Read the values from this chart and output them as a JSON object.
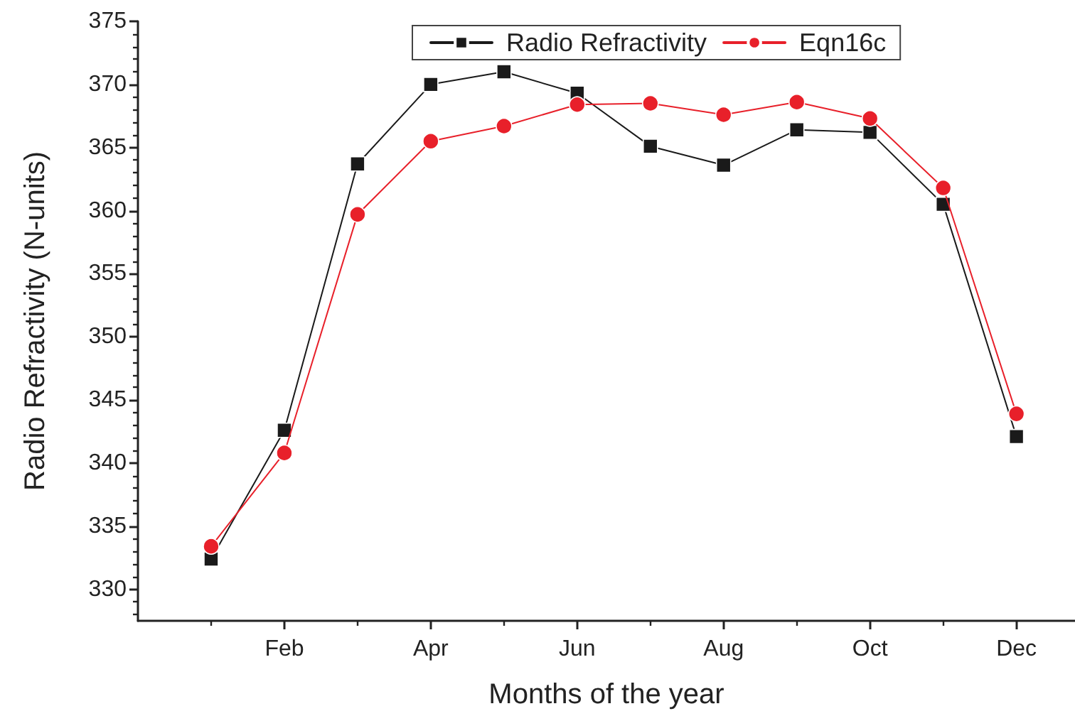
{
  "chart_data": {
    "type": "line",
    "xlabel": "Months of the year",
    "ylabel": "Radio Refractivity (N-units)",
    "categories": [
      null,
      "Feb",
      null,
      "Apr",
      null,
      "Jun",
      null,
      "Aug",
      null,
      "Oct",
      null,
      "Dec"
    ],
    "ylim": [
      327.5,
      375
    ],
    "yticks": [
      {
        "value": 328,
        "label": null
      },
      {
        "value": 329,
        "label": null
      },
      330,
      {
        "value": 331,
        "label": null
      },
      {
        "value": 332,
        "label": null
      },
      {
        "value": 333,
        "label": null
      },
      {
        "value": 334,
        "label": null
      },
      335,
      {
        "value": 336,
        "label": null
      },
      {
        "value": 337,
        "label": null
      },
      {
        "value": 338,
        "label": null
      },
      {
        "value": 339,
        "label": null
      },
      340,
      {
        "value": 341,
        "label": null
      },
      {
        "value": 342,
        "label": null
      },
      {
        "value": 343,
        "label": null
      },
      {
        "value": 344,
        "label": null
      },
      345,
      {
        "value": 346,
        "label": null
      },
      {
        "value": 347,
        "label": null
      },
      {
        "value": 348,
        "label": null
      },
      {
        "value": 349,
        "label": null
      },
      350,
      {
        "value": 351,
        "label": null
      },
      {
        "value": 352,
        "label": null
      },
      {
        "value": 353,
        "label": null
      },
      {
        "value": 354,
        "label": null
      },
      355,
      {
        "value": 356,
        "label": null
      },
      {
        "value": 357,
        "label": null
      },
      {
        "value": 358,
        "label": null
      },
      {
        "value": 359,
        "label": null
      },
      360,
      {
        "value": 361,
        "label": null
      },
      {
        "value": 362,
        "label": null
      },
      {
        "value": 363,
        "label": null
      },
      {
        "value": 364,
        "label": null
      },
      365,
      {
        "value": 366,
        "label": null
      },
      {
        "value": 367,
        "label": null
      },
      {
        "value": 368,
        "label": null
      },
      {
        "value": 369,
        "label": null
      },
      370,
      {
        "value": 371,
        "label": null
      },
      {
        "value": 372,
        "label": null
      },
      {
        "value": 373,
        "label": null
      },
      {
        "value": 374,
        "label": null
      },
      375
    ],
    "series": [
      {
        "name": "Radio Refractivity",
        "color": "#1a1a1a",
        "marker": "square",
        "values": [
          332.4,
          342.6,
          363.7,
          370.0,
          371.0,
          369.3,
          365.1,
          363.6,
          366.4,
          366.2,
          360.5,
          342.1
        ]
      },
      {
        "name": "Eqn16c",
        "color": "#e8202a",
        "marker": "circle",
        "values": [
          333.4,
          340.8,
          359.7,
          365.5,
          366.7,
          368.4,
          368.5,
          367.6,
          368.6,
          367.3,
          361.8,
          343.9
        ]
      }
    ],
    "legend": "top"
  }
}
